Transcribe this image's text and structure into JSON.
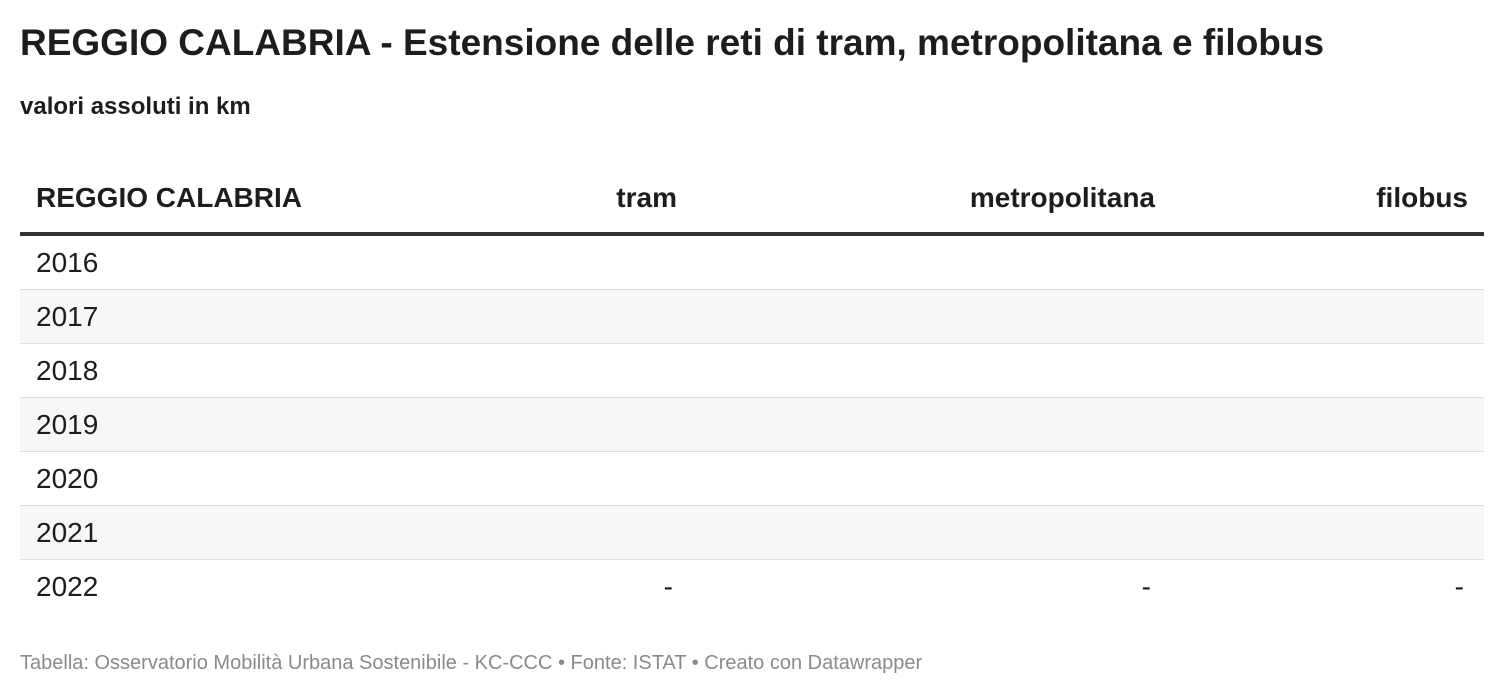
{
  "header": {
    "title": "REGGIO CALABRIA - Estensione delle reti di tram, metropolitana e filobus",
    "subtitle": "valori assoluti in km"
  },
  "table": {
    "columns": [
      "REGGIO CALABRIA",
      "tram",
      "metropolitana",
      "filobus"
    ],
    "rows": [
      [
        "2016"
      ],
      [
        "2017"
      ],
      [
        "2018"
      ],
      [
        "2019"
      ],
      [
        "2020"
      ],
      [
        "2021"
      ],
      [
        "2022",
        "-",
        "-",
        "-"
      ]
    ]
  },
  "footer": "Tabella: Osservatorio Mobilità Urbana Sostenibile - KC-CCC • Fonte: ISTAT • Creato con Datawrapper"
}
